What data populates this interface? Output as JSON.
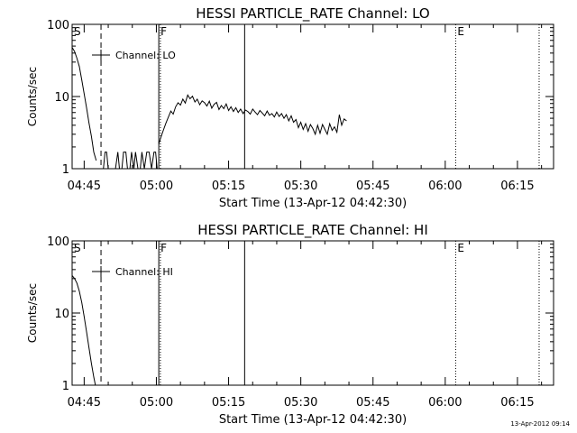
{
  "chart_data": [
    {
      "type": "line",
      "title": "HESSI PARTICLE_RATE Channel: LO",
      "xlabel": "Start Time (13-Apr-12 04:42:30)",
      "ylabel": "Counts/sec",
      "y_scale": "log",
      "ylim": [
        1,
        100
      ],
      "xlim": [
        "04:42:30",
        "06:22:30"
      ],
      "x_ticks": [
        "04:45",
        "05:00",
        "05:15",
        "05:30",
        "05:45",
        "06:00",
        "06:15"
      ],
      "y_ticks": [
        "1",
        "10",
        "100"
      ],
      "legend": {
        "label": "Channel: LO",
        "placement": "top-left"
      },
      "markers": [
        {
          "label": "S",
          "time": "04:42:30",
          "style": "dotted"
        },
        {
          "label": "",
          "time": "04:48:30",
          "style": "dashed"
        },
        {
          "label": "F",
          "time": "05:00:30",
          "style": "solid"
        },
        {
          "label": "",
          "time": "05:00:50",
          "style": "dotted"
        },
        {
          "label": "",
          "time": "05:18:20",
          "style": "solid"
        },
        {
          "label": "E",
          "time": "06:02:10",
          "style": "dotted"
        },
        {
          "label": "",
          "time": "06:19:30",
          "style": "dotted"
        }
      ],
      "series": [
        {
          "name": "Channel: LO",
          "segments": [
            [
              [
                "04:42:30",
                48
              ],
              [
                "04:43:00",
                42
              ],
              [
                "04:43:30",
                34
              ],
              [
                "04:44:00",
                26
              ],
              [
                "04:44:30",
                17
              ],
              [
                "04:45:00",
                11
              ],
              [
                "04:45:30",
                7
              ],
              [
                "04:46:00",
                4.3
              ],
              [
                "04:46:30",
                2.8
              ],
              [
                "04:47:00",
                1.7
              ],
              [
                "04:47:30",
                1.3
              ]
            ],
            [
              [
                "04:48:30",
                1
              ],
              [
                "04:49:00",
                1
              ],
              [
                "04:49:20",
                1.7
              ],
              [
                "04:49:40",
                1.7
              ],
              [
                "04:50:00",
                1
              ]
            ],
            [
              [
                "04:51:30",
                1
              ],
              [
                "04:52:00",
                1.7
              ],
              [
                "04:52:20",
                1
              ],
              [
                "04:52:50",
                1
              ],
              [
                "04:53:10",
                1.7
              ],
              [
                "04:53:40",
                1.7
              ],
              [
                "04:54:00",
                1
              ],
              [
                "04:54:30",
                1
              ],
              [
                "04:54:50",
                1.7
              ],
              [
                "04:55:20",
                1
              ],
              [
                "04:55:40",
                1.7
              ],
              [
                "04:56:10",
                1
              ],
              [
                "04:56:40",
                1
              ],
              [
                "04:57:00",
                1.7
              ],
              [
                "04:57:30",
                1
              ],
              [
                "04:58:00",
                1.7
              ],
              [
                "04:58:30",
                1.7
              ],
              [
                "04:59:00",
                1
              ],
              [
                "04:59:30",
                1.7
              ],
              [
                "04:59:50",
                1.7
              ],
              [
                "05:00:10",
                1
              ]
            ],
            [
              [
                "05:00:30",
                2.2
              ],
              [
                "05:01:00",
                2.8
              ],
              [
                "05:01:30",
                3.5
              ],
              [
                "05:02:00",
                4.3
              ],
              [
                "05:02:30",
                5.2
              ],
              [
                "05:03:00",
                6.3
              ],
              [
                "05:03:30",
                5.7
              ],
              [
                "05:04:00",
                7.2
              ],
              [
                "05:04:30",
                8.2
              ],
              [
                "05:05:00",
                7.6
              ],
              [
                "05:05:30",
                9.2
              ],
              [
                "05:06:00",
                8.1
              ],
              [
                "05:06:30",
                10.5
              ],
              [
                "05:07:00",
                9.3
              ],
              [
                "05:07:30",
                10.1
              ],
              [
                "05:08:00",
                8.4
              ],
              [
                "05:08:30",
                9.2
              ],
              [
                "05:09:00",
                7.7
              ],
              [
                "05:09:30",
                8.7
              ],
              [
                "05:10:00",
                8.2
              ],
              [
                "05:10:30",
                7.4
              ],
              [
                "05:11:00",
                8.6
              ],
              [
                "05:11:30",
                6.9
              ],
              [
                "05:12:00",
                7.8
              ],
              [
                "05:12:30",
                8.3
              ],
              [
                "05:13:00",
                6.6
              ],
              [
                "05:13:30",
                7.5
              ],
              [
                "05:14:00",
                6.8
              ],
              [
                "05:14:30",
                7.9
              ],
              [
                "05:15:00",
                6.4
              ],
              [
                "05:15:30",
                7.2
              ],
              [
                "05:16:00",
                6.2
              ],
              [
                "05:16:30",
                7.0
              ],
              [
                "05:17:00",
                6.0
              ],
              [
                "05:17:30",
                6.7
              ],
              [
                "05:18:00",
                5.8
              ],
              [
                "05:18:30",
                6.5
              ],
              [
                "05:19:00",
                6.2
              ],
              [
                "05:19:30",
                5.7
              ],
              [
                "05:20:00",
                6.7
              ],
              [
                "05:20:30",
                6.1
              ],
              [
                "05:21:00",
                5.6
              ],
              [
                "05:21:30",
                6.4
              ],
              [
                "05:22:00",
                5.9
              ],
              [
                "05:22:30",
                5.4
              ],
              [
                "05:23:00",
                6.3
              ],
              [
                "05:23:30",
                5.5
              ],
              [
                "05:24:00",
                5.8
              ],
              [
                "05:24:30",
                5.2
              ],
              [
                "05:25:00",
                6.1
              ],
              [
                "05:25:30",
                5.3
              ],
              [
                "05:26:00",
                5.8
              ],
              [
                "05:26:30",
                5.0
              ],
              [
                "05:27:00",
                5.6
              ],
              [
                "05:27:30",
                4.6
              ],
              [
                "05:28:00",
                5.4
              ],
              [
                "05:28:30",
                4.4
              ],
              [
                "05:29:00",
                4.8
              ],
              [
                "05:29:30",
                3.7
              ],
              [
                "05:30:00",
                4.4
              ],
              [
                "05:30:30",
                3.5
              ],
              [
                "05:31:00",
                4.2
              ],
              [
                "05:31:30",
                3.3
              ],
              [
                "05:32:00",
                4.1
              ],
              [
                "05:32:30",
                3.6
              ],
              [
                "05:33:00",
                3.0
              ],
              [
                "05:33:30",
                4.0
              ],
              [
                "05:34:00",
                3.1
              ],
              [
                "05:34:30",
                4.1
              ],
              [
                "05:35:00",
                3.5
              ],
              [
                "05:35:30",
                3.0
              ],
              [
                "05:36:00",
                4.2
              ],
              [
                "05:36:30",
                3.4
              ],
              [
                "05:37:00",
                3.8
              ],
              [
                "05:37:30",
                3.2
              ],
              [
                "05:38:00",
                5.6
              ],
              [
                "05:38:30",
                4.0
              ],
              [
                "05:39:00",
                4.9
              ],
              [
                "05:39:30",
                4.6
              ]
            ]
          ]
        }
      ]
    },
    {
      "type": "line",
      "title": "HESSI PARTICLE_RATE Channel: HI",
      "xlabel": "Start Time (13-Apr-12 04:42:30)",
      "ylabel": "Counts/sec",
      "y_scale": "log",
      "ylim": [
        1,
        100
      ],
      "xlim": [
        "04:42:30",
        "06:22:30"
      ],
      "x_ticks": [
        "04:45",
        "05:00",
        "05:15",
        "05:30",
        "05:45",
        "06:00",
        "06:15"
      ],
      "y_ticks": [
        "1",
        "10",
        "100"
      ],
      "legend": {
        "label": "Channel: HI",
        "placement": "top-left"
      },
      "markers": [
        {
          "label": "S",
          "time": "04:42:30",
          "style": "dotted"
        },
        {
          "label": "",
          "time": "04:48:30",
          "style": "dashed"
        },
        {
          "label": "F",
          "time": "05:00:30",
          "style": "solid"
        },
        {
          "label": "",
          "time": "05:00:50",
          "style": "dotted"
        },
        {
          "label": "",
          "time": "05:18:20",
          "style": "solid"
        },
        {
          "label": "E",
          "time": "06:02:10",
          "style": "dotted"
        },
        {
          "label": "",
          "time": "06:19:30",
          "style": "dotted"
        }
      ],
      "series": [
        {
          "name": "Channel: HI",
          "segments": [
            [
              [
                "04:42:30",
                33
              ],
              [
                "04:43:00",
                30
              ],
              [
                "04:43:30",
                26
              ],
              [
                "04:44:00",
                20
              ],
              [
                "04:44:30",
                14
              ],
              [
                "04:45:00",
                9
              ],
              [
                "04:45:30",
                5.5
              ],
              [
                "04:46:00",
                3.3
              ],
              [
                "04:46:30",
                2.0
              ],
              [
                "04:47:00",
                1.3
              ],
              [
                "04:47:20",
                1
              ]
            ]
          ]
        }
      ]
    }
  ],
  "timestamp": "13-Apr-2012 09:14"
}
